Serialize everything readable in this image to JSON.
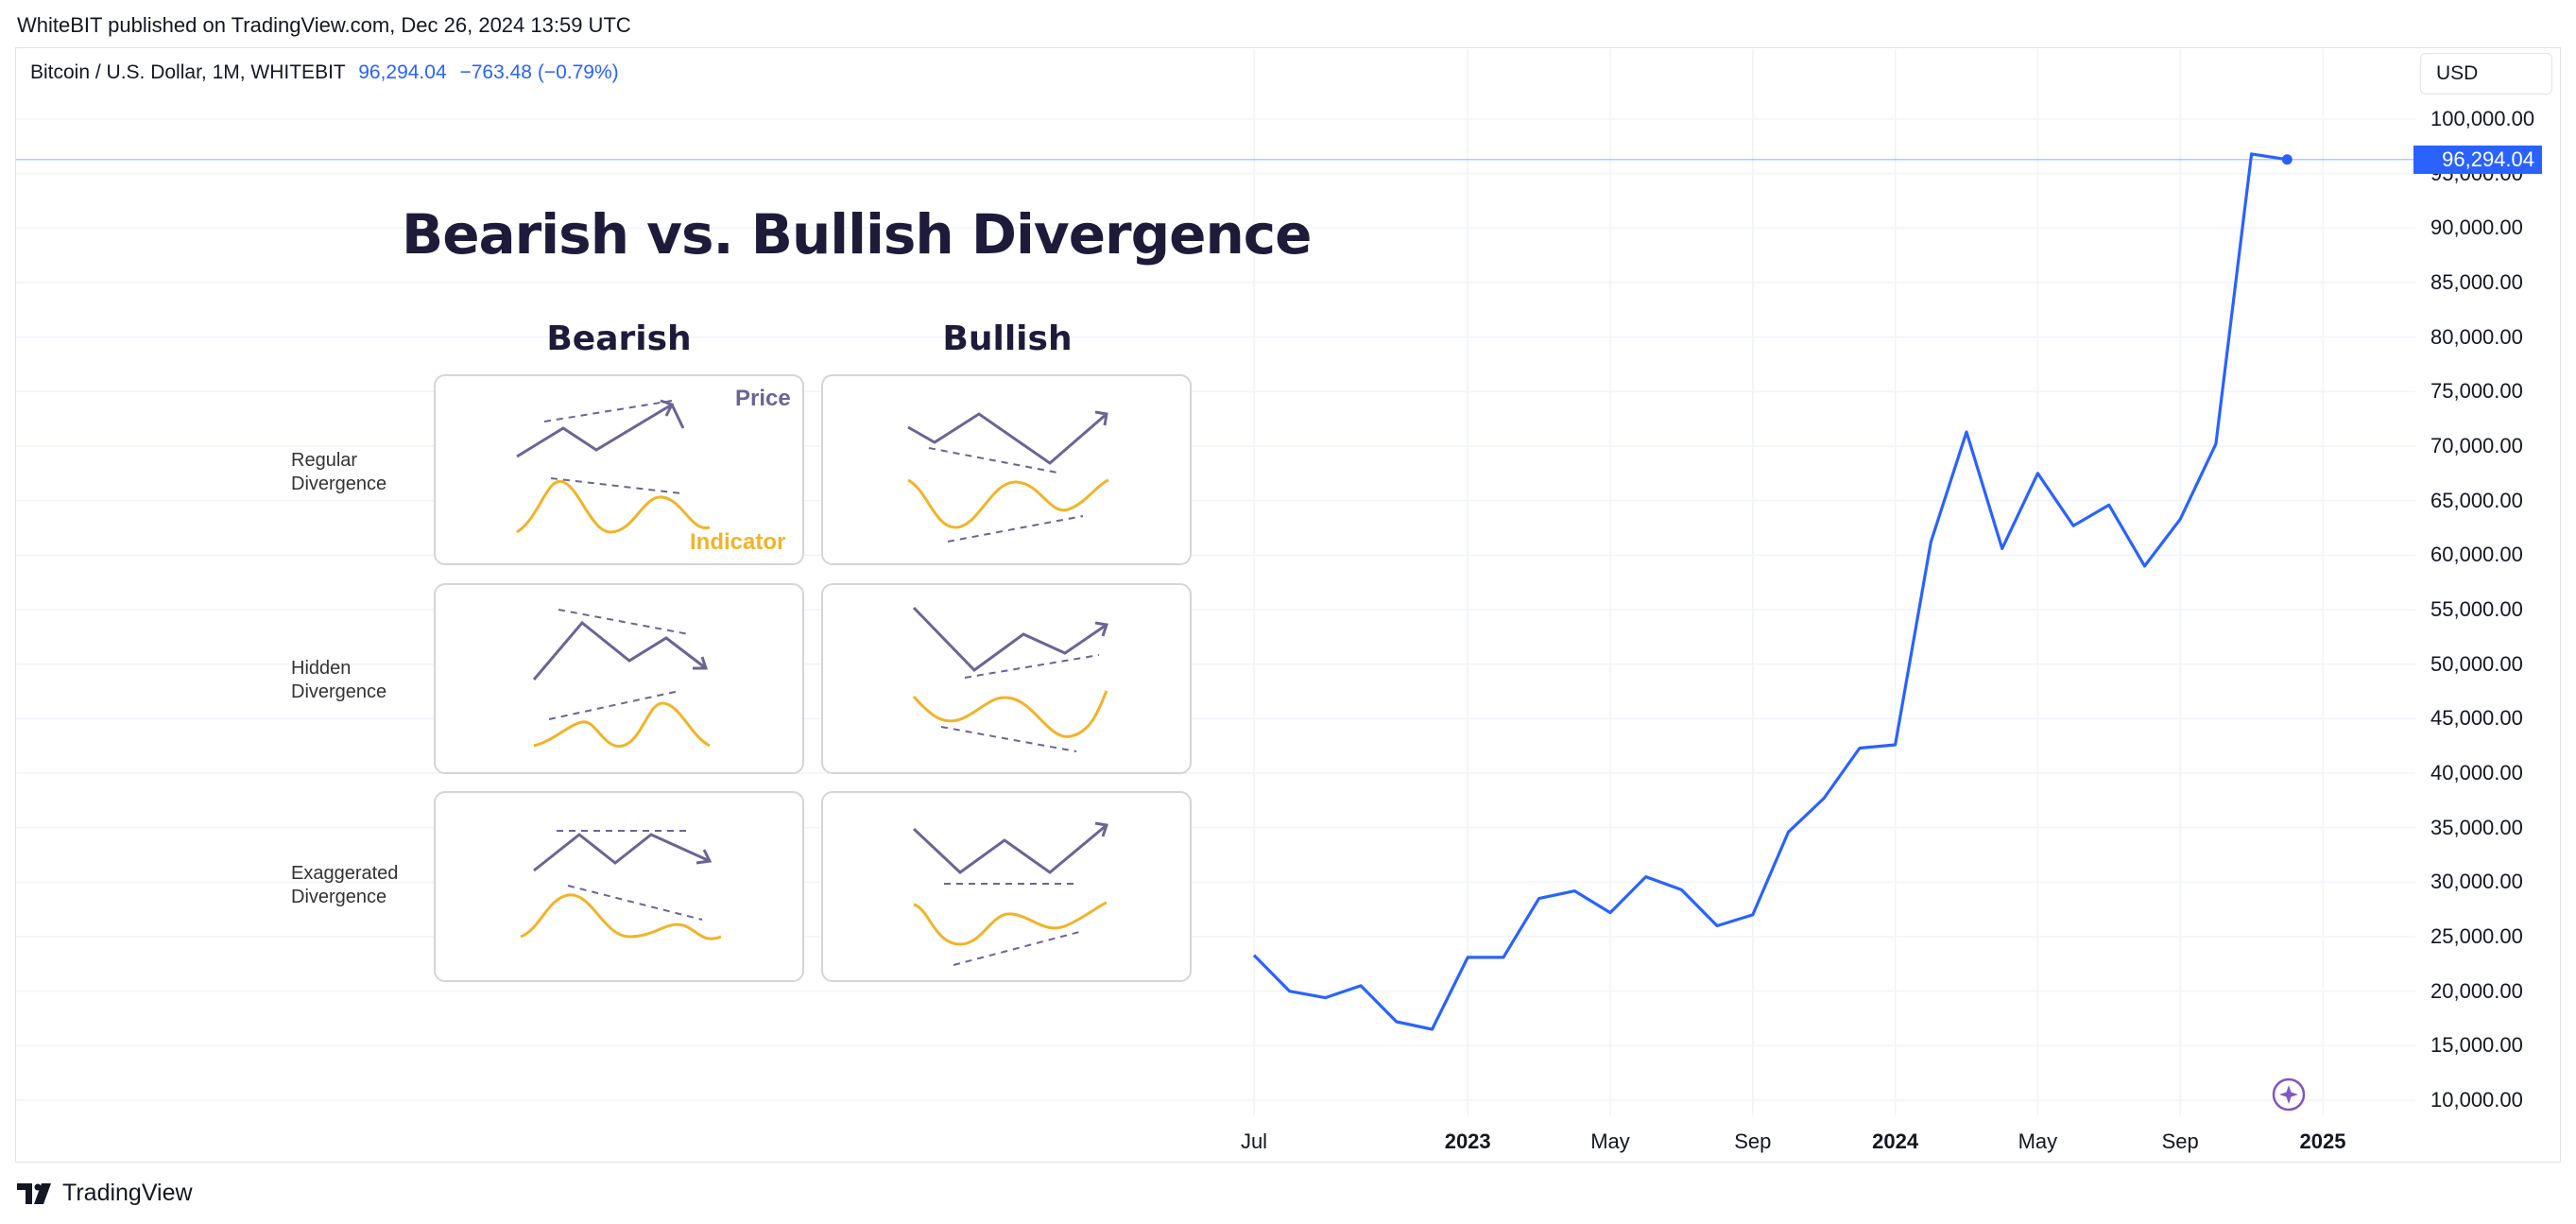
{
  "header": {
    "publish_line": "WhiteBIT published on TradingView.com, Dec 26, 2024 13:59 UTC",
    "symbol": "Bitcoin / U.S. Dollar, 1M, WHITEBIT",
    "last_value": "96,294.04",
    "change": "−763.48 (−0.79%)",
    "currency_button": "USD"
  },
  "price_tag": "96,294.04",
  "footer": {
    "brand": "TradingView"
  },
  "overlay": {
    "title": "Bearish vs. Bullish Divergence",
    "columns": [
      "Bearish",
      "Bullish"
    ],
    "rows": [
      {
        "line1": "Regular",
        "line2": "Divergence"
      },
      {
        "line1": "Hidden",
        "line2": "Divergence"
      },
      {
        "line1": "Exaggerated",
        "line2": "Divergence"
      }
    ],
    "price_label": "Price",
    "indicator_label": "Indicator"
  },
  "colors": {
    "line": "#2962ff",
    "price_sketch": "#6b6494",
    "indicator_sketch": "#f0b429",
    "grid": "#f0f3fa"
  },
  "chart_data": {
    "type": "line",
    "title": "Bitcoin / U.S. Dollar, 1M, WHITEBIT",
    "xlabel": "",
    "ylabel": "",
    "ylim": [
      10000,
      100000
    ],
    "y_ticks": [
      "100,000.00",
      "95,000.00",
      "90,000.00",
      "85,000.00",
      "80,000.00",
      "75,000.00",
      "70,000.00",
      "65,000.00",
      "60,000.00",
      "55,000.00",
      "50,000.00",
      "45,000.00",
      "40,000.00",
      "35,000.00",
      "30,000.00",
      "25,000.00",
      "20,000.00",
      "15,000.00",
      "10,000.00"
    ],
    "x_ticks": [
      {
        "label": "Jul",
        "month": 0,
        "bold": false
      },
      {
        "label": "2023",
        "month": 6,
        "bold": true
      },
      {
        "label": "May",
        "month": 10,
        "bold": false
      },
      {
        "label": "Sep",
        "month": 14,
        "bold": false
      },
      {
        "label": "2024",
        "month": 18,
        "bold": true
      },
      {
        "label": "May",
        "month": 22,
        "bold": false
      },
      {
        "label": "Sep",
        "month": 26,
        "bold": false
      },
      {
        "label": "2025",
        "month": 30,
        "bold": true
      }
    ],
    "x": [
      "2022-07",
      "2022-08",
      "2022-09",
      "2022-10",
      "2022-11",
      "2022-12",
      "2023-01",
      "2023-02",
      "2023-03",
      "2023-04",
      "2023-05",
      "2023-06",
      "2023-07",
      "2023-08",
      "2023-09",
      "2023-10",
      "2023-11",
      "2023-12",
      "2024-01",
      "2024-02",
      "2024-03",
      "2024-04",
      "2024-05",
      "2024-06",
      "2024-07",
      "2024-08",
      "2024-09",
      "2024-10",
      "2024-11",
      "2024-12"
    ],
    "series": [
      {
        "values": [
          23300,
          20000,
          19400,
          20500,
          17200,
          16500,
          23100,
          23100,
          28500,
          29200,
          27200,
          30500,
          29300,
          26000,
          27000,
          34600,
          37700,
          42300,
          42600,
          61200,
          71300,
          60600,
          67500,
          62700,
          64600,
          59000,
          63300,
          70200,
          96800,
          96294.04
        ]
      }
    ],
    "last_value": 96294.04,
    "grid": true
  }
}
